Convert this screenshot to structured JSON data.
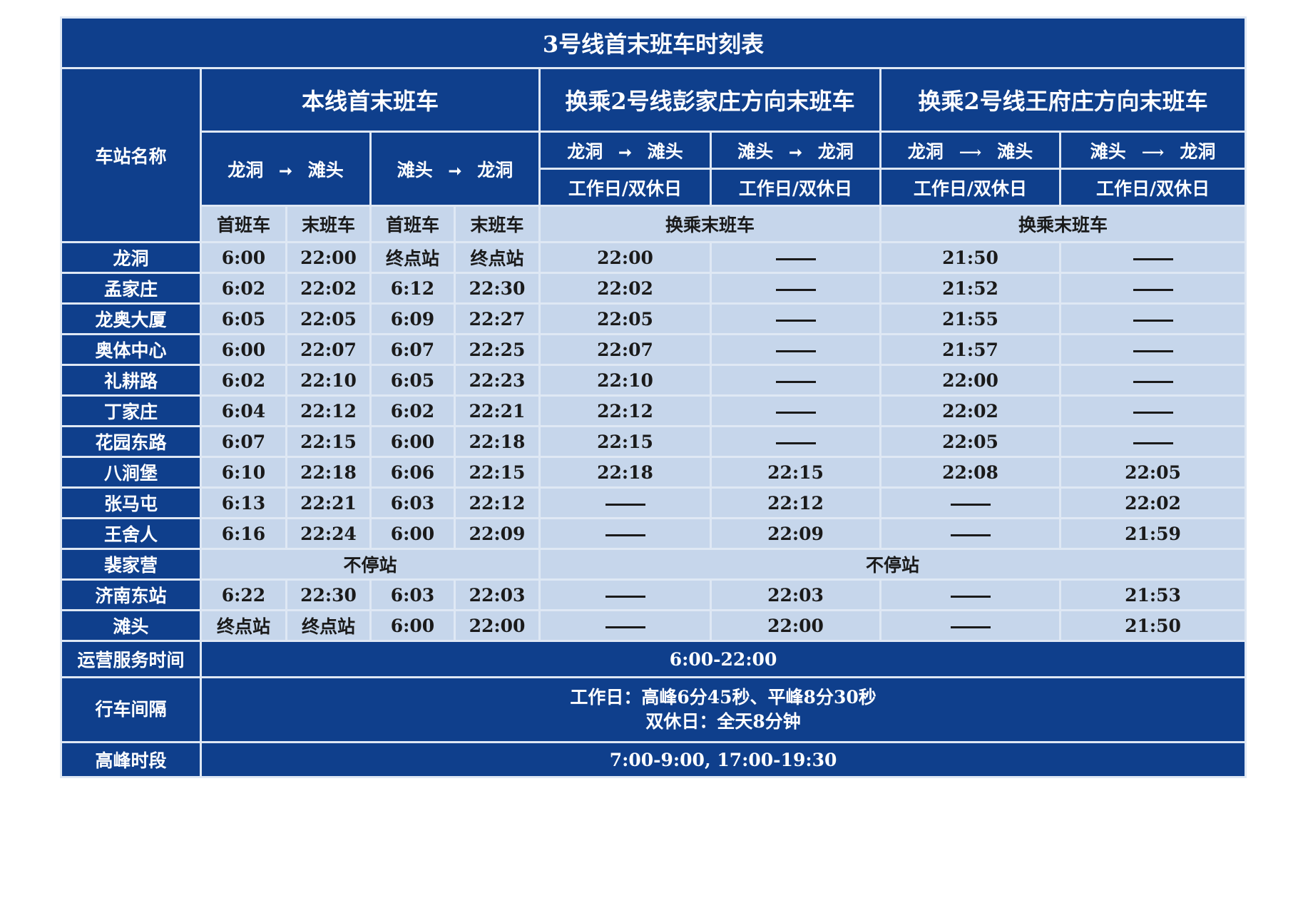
{
  "title": "3号线首末班车时刻表",
  "headers": {
    "station_name": "车站名称",
    "own_line": "本线首末班车",
    "transfer_a": "换乘2号线彭家庄方向末班车",
    "transfer_b": "换乘2号线王府庄方向末班车",
    "dir_longdong_tantou": {
      "from": "龙洞",
      "to": "滩头"
    },
    "dir_tantou_longdong": {
      "from": "滩头",
      "to": "龙洞"
    },
    "day_type": "工作日/双休日",
    "first_train": "首班车",
    "last_train": "末班车",
    "transfer_last_train": "换乘末班车"
  },
  "colors": {
    "header_bg": "#0f3f8c",
    "cell_bg": "#c6d6eb",
    "grid": "#dfe8f4"
  },
  "rows": [
    {
      "station": "龙洞",
      "c": [
        "6:00",
        "22:00",
        "终点站",
        "终点站",
        "22:00",
        "——",
        "21:50",
        "——"
      ]
    },
    {
      "station": "孟家庄",
      "c": [
        "6:02",
        "22:02",
        "6:12",
        "22:30",
        "22:02",
        "——",
        "21:52",
        "——"
      ]
    },
    {
      "station": "龙奥大厦",
      "c": [
        "6:05",
        "22:05",
        "6:09",
        "22:27",
        "22:05",
        "——",
        "21:55",
        "——"
      ]
    },
    {
      "station": "奥体中心",
      "c": [
        "6:00",
        "22:07",
        "6:07",
        "22:25",
        "22:07",
        "——",
        "21:57",
        "——"
      ]
    },
    {
      "station": "礼耕路",
      "c": [
        "6:02",
        "22:10",
        "6:05",
        "22:23",
        "22:10",
        "——",
        "22:00",
        "——"
      ]
    },
    {
      "station": "丁家庄",
      "c": [
        "6:04",
        "22:12",
        "6:02",
        "22:21",
        "22:12",
        "——",
        "22:02",
        "——"
      ]
    },
    {
      "station": "花园东路",
      "c": [
        "6:07",
        "22:15",
        "6:00",
        "22:18",
        "22:15",
        "——",
        "22:05",
        "——"
      ]
    },
    {
      "station": "八涧堡",
      "c": [
        "6:10",
        "22:18",
        "6:06",
        "22:15",
        "22:18",
        "22:15",
        "22:08",
        "22:05"
      ]
    },
    {
      "station": "张马屯",
      "c": [
        "6:13",
        "22:21",
        "6:03",
        "22:12",
        "——",
        "22:12",
        "——",
        "22:02"
      ]
    },
    {
      "station": "王舍人",
      "c": [
        "6:16",
        "22:24",
        "6:00",
        "22:09",
        "——",
        "22:09",
        "——",
        "21:59"
      ]
    },
    {
      "station": "裴家营",
      "no_stop": "不停站"
    },
    {
      "station": "济南东站",
      "c": [
        "6:22",
        "22:30",
        "6:03",
        "22:03",
        "——",
        "22:03",
        "——",
        "21:53"
      ]
    },
    {
      "station": "滩头",
      "c": [
        "终点站",
        "终点站",
        "6:00",
        "22:00",
        "——",
        "22:00",
        "——",
        "21:50"
      ]
    }
  ],
  "footer": {
    "service_label": "运营服务时间",
    "service_value": "6:00-22:00",
    "interval_label": "行车间隔",
    "interval_line1": "工作日：高峰6分45秒、平峰8分30秒",
    "interval_line2": "双休日：全天8分钟",
    "peak_label": "高峰时段",
    "peak_value": "7:00-9:00, 17:00-19:30"
  }
}
